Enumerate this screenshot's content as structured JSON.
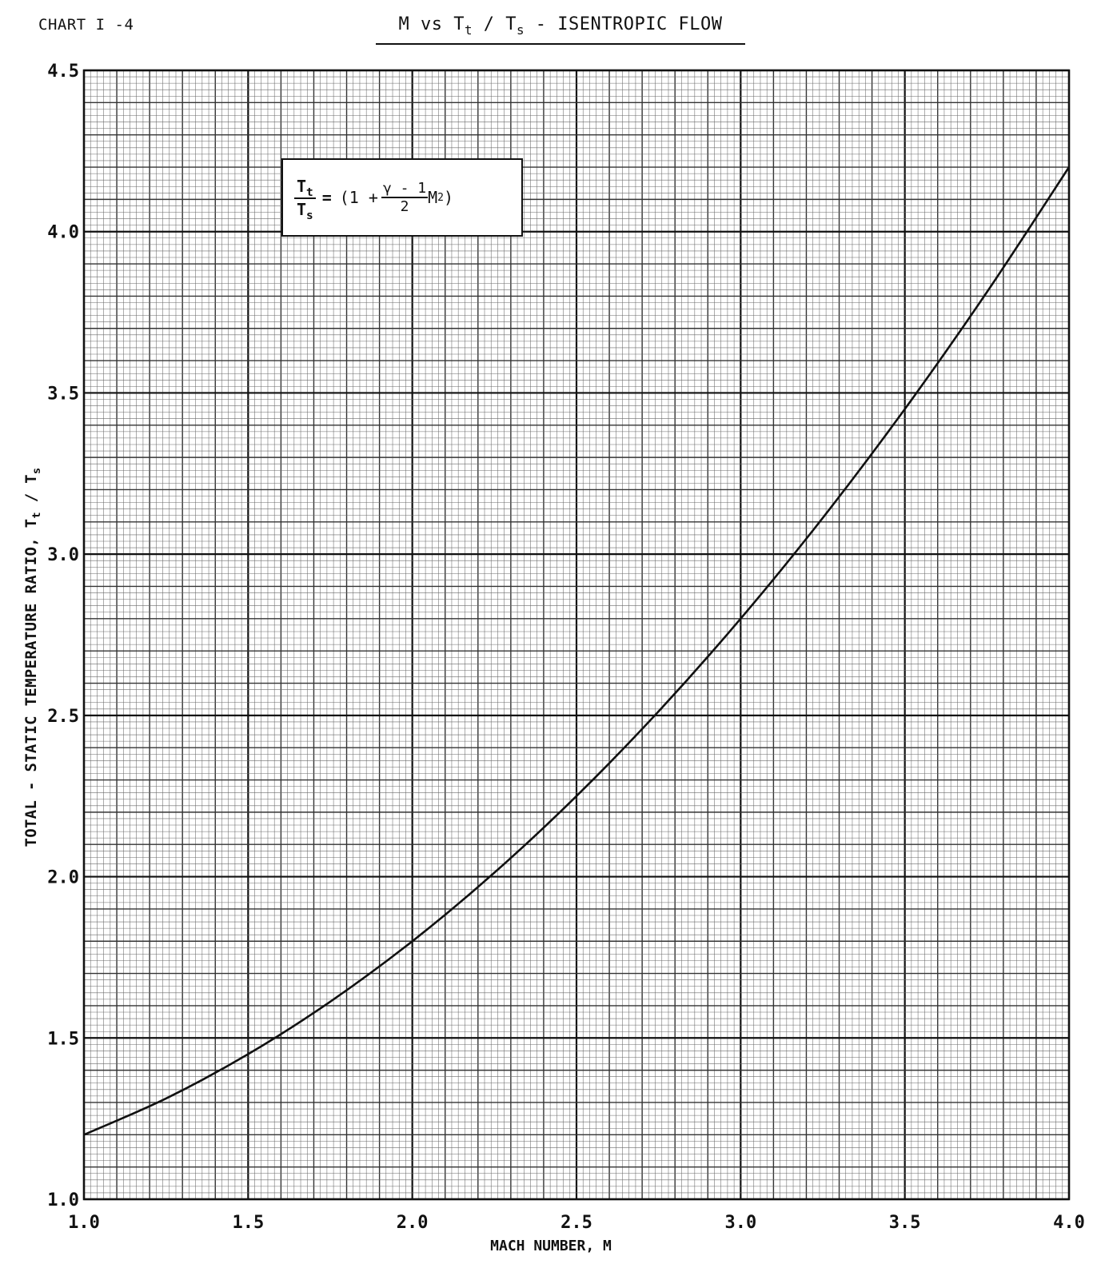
{
  "header": {
    "chart_id": "CHART I -4",
    "title_prefix": "M vs T",
    "title_sub1": "t",
    "title_slash": " / T",
    "title_sub2": "s",
    "title_suffix": " - ISENTROPIC FLOW"
  },
  "formula": {
    "lhs_num": "T",
    "lhs_num_sub": "t",
    "lhs_den": "T",
    "lhs_den_sub": "s",
    "eq": "=",
    "open": "(1 +",
    "gamma_num": "γ - 1",
    "gamma_den": "2",
    "m": "M",
    "power": "2",
    "close": ")"
  },
  "chart_data": {
    "type": "line",
    "title": "M vs Tt / Ts - ISENTROPIC FLOW",
    "xlabel": "MACH NUMBER, M",
    "ylabel": "TOTAL - STATIC TEMPERATURE RATIO, Tt / Ts",
    "ylabel_main": "TOTAL - STATIC TEMPERATURE RATIO,  T",
    "ylabel_sub1": "t",
    "ylabel_mid": " / T",
    "ylabel_sub2": "s",
    "xlim": [
      1.0,
      4.0
    ],
    "ylim": [
      1.0,
      4.5
    ],
    "x_ticks": [
      "1.0",
      "1.5",
      "2.0",
      "2.5",
      "3.0",
      "3.5",
      "4.0"
    ],
    "y_ticks": [
      "1.0",
      "1.5",
      "2.0",
      "2.5",
      "3.0",
      "3.5",
      "4.0",
      "4.5"
    ],
    "grid": true,
    "x": [
      1.0,
      1.25,
      1.5,
      1.75,
      2.0,
      2.25,
      2.5,
      2.75,
      3.0,
      3.25,
      3.5,
      3.75,
      4.0
    ],
    "y": [
      1.2,
      1.3125,
      1.45,
      1.6125,
      1.8,
      2.0125,
      2.25,
      2.5125,
      2.8,
      3.1125,
      3.45,
      3.8125,
      4.2
    ]
  }
}
